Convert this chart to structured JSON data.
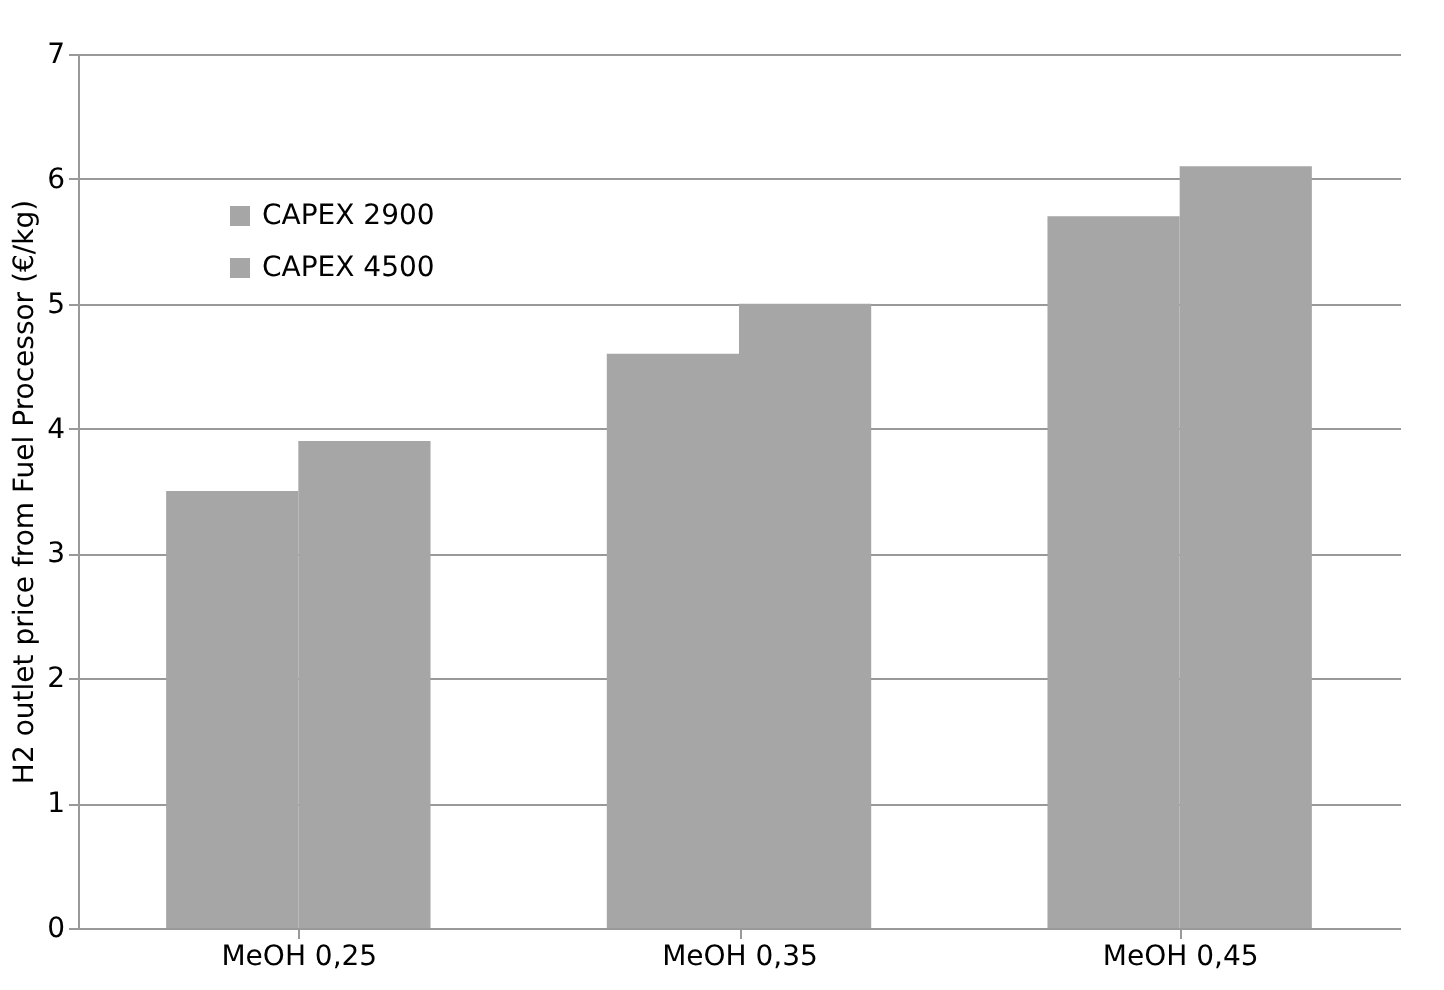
{
  "chart_data": {
    "type": "bar",
    "ylabel": "H2 outlet price from Fuel Processor (€/kg)",
    "categories": [
      "MeOH 0,25",
      "MeOH 0,35",
      "MeOH 0,45"
    ],
    "series": [
      {
        "name": "CAPEX 2900",
        "color": "#a6a6a6",
        "values": [
          3.5,
          4.6,
          5.7
        ]
      },
      {
        "name": "CAPEX 4500",
        "color": "#a6a6a6",
        "values": [
          3.9,
          5.0,
          6.1
        ]
      }
    ],
    "ylim": [
      0,
      7
    ],
    "yticks": [
      0,
      1,
      2,
      3,
      4,
      5,
      6,
      7
    ],
    "grid": "y",
    "legend": "top left"
  }
}
